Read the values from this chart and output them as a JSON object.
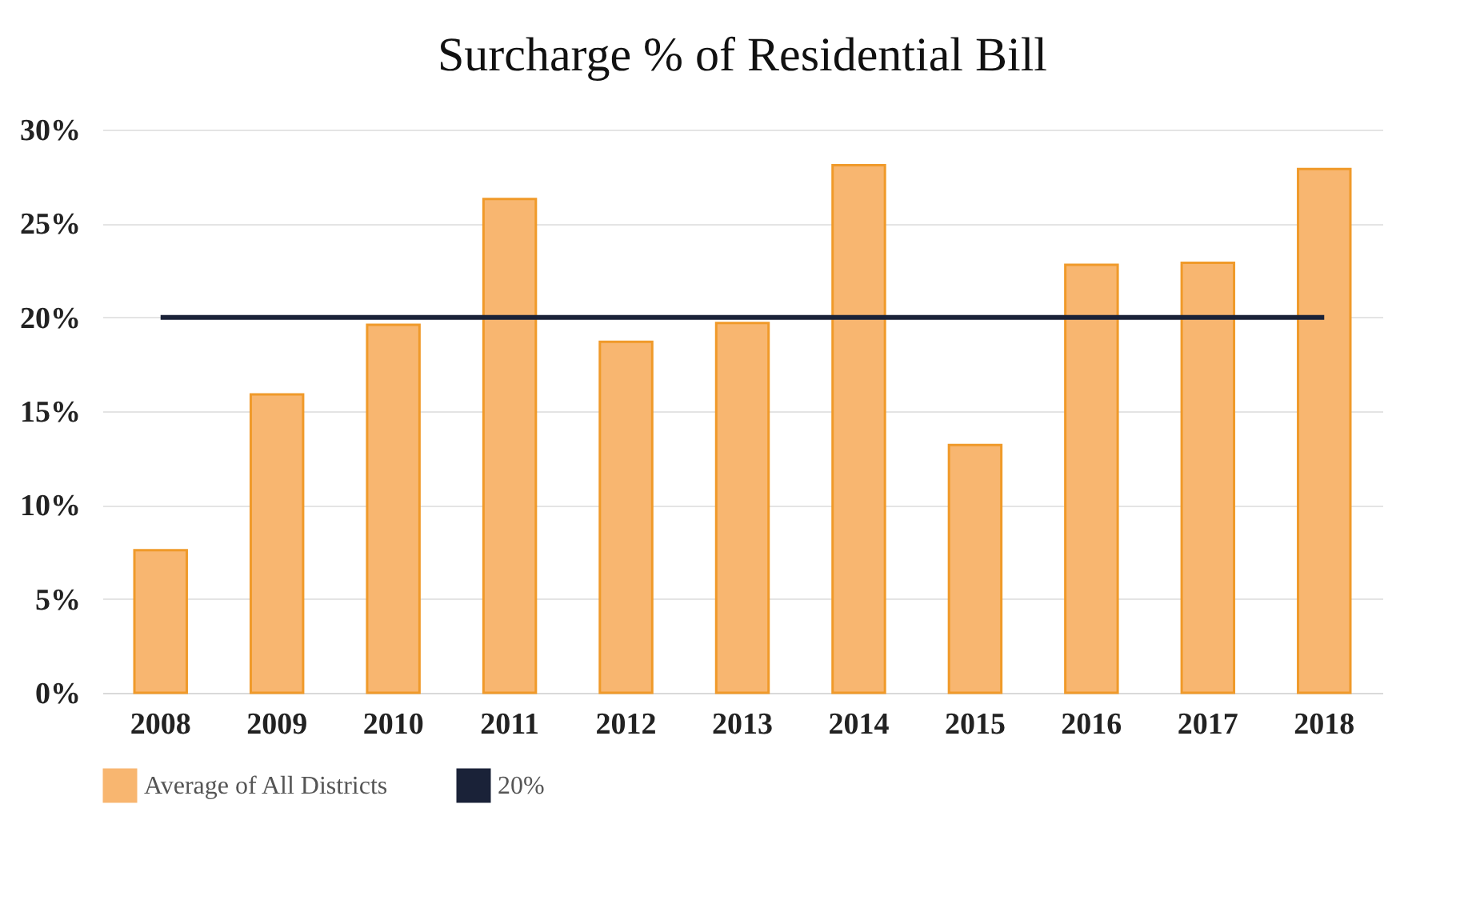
{
  "chart_data": {
    "type": "bar",
    "title": "Surcharge % of Residential Bill",
    "categories": [
      "2008",
      "2009",
      "2010",
      "2011",
      "2012",
      "2013",
      "2014",
      "2015",
      "2016",
      "2017",
      "2018"
    ],
    "series": [
      {
        "name": "Average of All Districts",
        "color": "#f8b670",
        "values": [
          7.6,
          15.9,
          19.6,
          26.3,
          18.7,
          19.7,
          28.1,
          13.2,
          22.8,
          22.9,
          27.9
        ]
      },
      {
        "name": "20%",
        "type": "line",
        "color": "#1a2238",
        "values": [
          20,
          20,
          20,
          20,
          20,
          20,
          20,
          20,
          20,
          20,
          20
        ]
      }
    ],
    "ylim": [
      0,
      30
    ],
    "yticks": [
      {
        "value": 0,
        "label": "0%"
      },
      {
        "value": 5,
        "label": "5%"
      },
      {
        "value": 10,
        "label": "10%"
      },
      {
        "value": 15,
        "label": "15%"
      },
      {
        "value": 20,
        "label": "20%"
      },
      {
        "value": 25,
        "label": "25%"
      },
      {
        "value": 30,
        "label": "30%"
      }
    ],
    "grid": "y",
    "legend": "bottom",
    "marker": "none"
  }
}
